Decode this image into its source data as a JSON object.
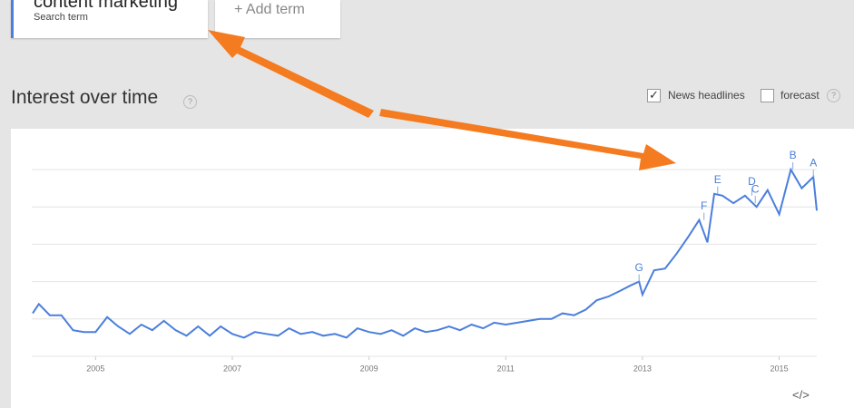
{
  "search": {
    "term": "content marketing",
    "subtitle": "Search term",
    "add": "+ Add term"
  },
  "section": {
    "title": "Interest over time",
    "help": "?",
    "news": "News headlines",
    "forecast": "forecast",
    "help2": "?",
    "embed": "</>"
  },
  "chart_data": {
    "type": "line",
    "color": "#4a7fdc",
    "x": [
      2004.08,
      2004.17,
      2004.33,
      2004.5,
      2004.67,
      2004.83,
      2005,
      2005.17,
      2005.33,
      2005.5,
      2005.67,
      2005.83,
      2006,
      2006.17,
      2006.33,
      2006.5,
      2006.67,
      2006.83,
      2007,
      2007.17,
      2007.33,
      2007.5,
      2007.67,
      2007.83,
      2008,
      2008.17,
      2008.33,
      2008.5,
      2008.67,
      2008.83,
      2009,
      2009.17,
      2009.33,
      2009.5,
      2009.67,
      2009.83,
      2010,
      2010.17,
      2010.33,
      2010.5,
      2010.67,
      2010.83,
      2011,
      2011.17,
      2011.33,
      2011.5,
      2011.67,
      2011.83,
      2012,
      2012.17,
      2012.33,
      2012.5,
      2012.67,
      2012.83,
      2012.95,
      2013,
      2013.17,
      2013.33,
      2013.5,
      2013.67,
      2013.83,
      2013.95,
      2014.05,
      2014.17,
      2014.33,
      2014.5,
      2014.67,
      2014.83,
      2015,
      2015.17,
      2015.33,
      2015.5,
      2015.55
    ],
    "values": [
      23,
      28,
      22,
      22,
      14,
      13,
      13,
      21,
      16,
      12,
      17,
      14,
      19,
      14,
      11,
      16,
      11,
      16,
      12,
      10,
      13,
      12,
      11,
      15,
      12,
      13,
      11,
      12,
      10,
      15,
      13,
      12,
      14,
      11,
      15,
      13,
      14,
      16,
      14,
      17,
      15,
      18,
      17,
      18,
      19,
      20,
      20,
      23,
      22,
      25,
      30,
      32,
      35,
      38,
      40,
      33,
      46,
      47,
      55,
      64,
      73,
      61,
      87,
      86,
      82,
      86,
      80,
      89,
      76,
      100,
      90,
      96,
      78
    ],
    "xlim": [
      2004,
      2015.55
    ],
    "ylim": [
      0,
      100
    ],
    "xticks": [
      2005,
      2007,
      2009,
      2011,
      2013,
      2015
    ],
    "yticks": [
      0,
      20,
      40,
      60,
      80,
      100
    ],
    "grid": true,
    "annotations": [
      {
        "label": "A",
        "x": 2015.5,
        "y": 96
      },
      {
        "label": "B",
        "x": 2015.2,
        "y": 100
      },
      {
        "label": "C",
        "x": 2014.65,
        "y": 82
      },
      {
        "label": "D",
        "x": 2014.6,
        "y": 86
      },
      {
        "label": "E",
        "x": 2014.1,
        "y": 87
      },
      {
        "label": "F",
        "x": 2013.9,
        "y": 73
      },
      {
        "label": "G",
        "x": 2012.95,
        "y": 40
      }
    ]
  }
}
